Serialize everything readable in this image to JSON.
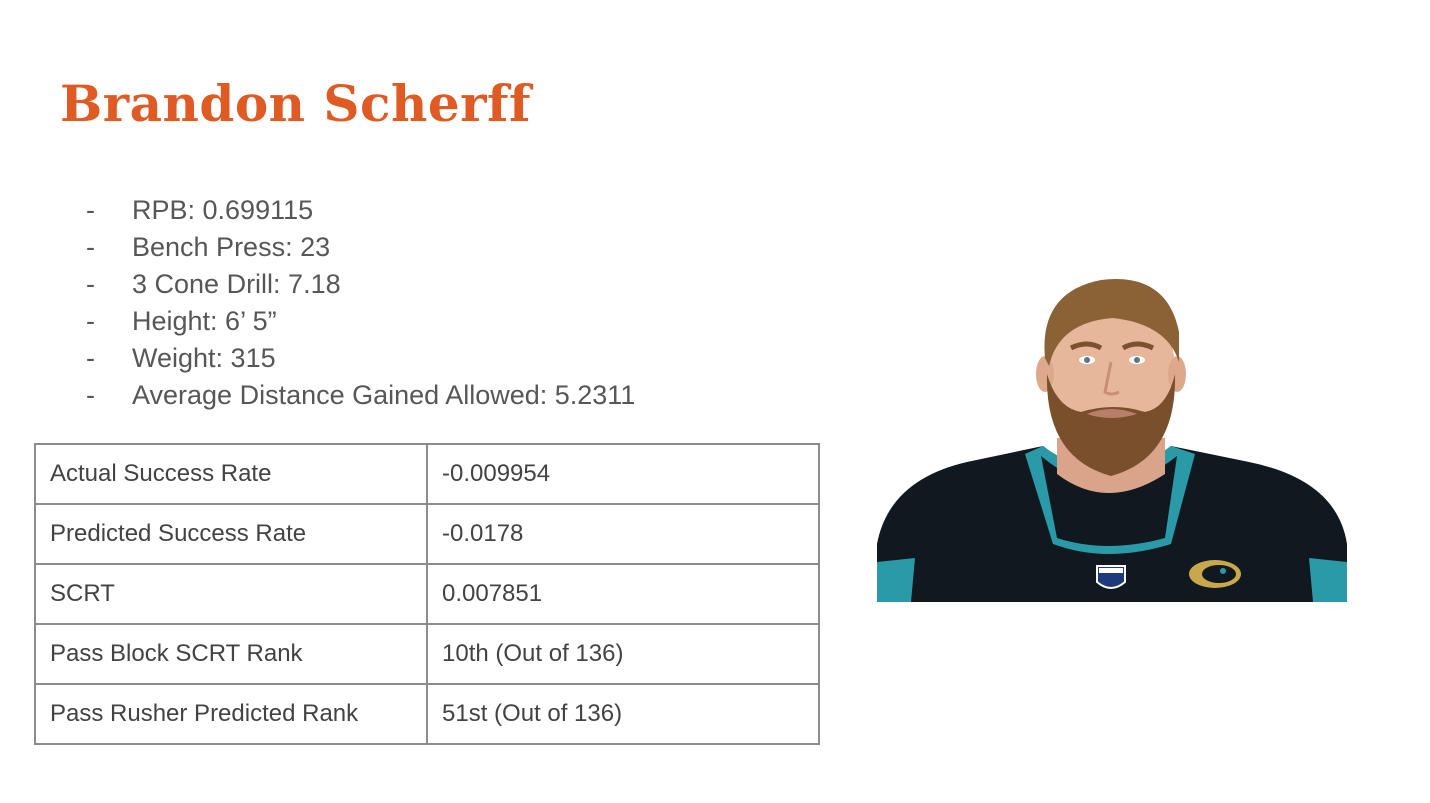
{
  "slide": {
    "title": "Brandon Scherff",
    "bullets": [
      {
        "dash": "-",
        "text": "RPB: 0.699115"
      },
      {
        "dash": "-",
        "text": "Bench Press: 23"
      },
      {
        "dash": "-",
        "text": "3 Cone Drill: 7.18"
      },
      {
        "dash": "-",
        "text": "Height: 6’ 5”"
      },
      {
        "dash": "-",
        "text": "Weight: 315"
      },
      {
        "dash": "-",
        "text": "Average Distance Gained Allowed: 5.2311"
      }
    ],
    "table": [
      {
        "label": "Actual Success Rate",
        "value": "-0.009954"
      },
      {
        "label": "Predicted Success Rate",
        "value": "-0.0178"
      },
      {
        "label": "SCRT",
        "value": "0.007851"
      },
      {
        "label": "Pass Block SCRT Rank",
        "value": "10th (Out of 136)"
      },
      {
        "label": "Pass Rusher Predicted Rank",
        "value": "51st (Out of 136)"
      }
    ]
  },
  "colors": {
    "title": "#e05a24",
    "jersey": "#101820",
    "jersey_trim": "#2a9aa8",
    "hair": "#8a6236",
    "beard": "#7a4f2c",
    "skin": "#e7b79c"
  },
  "icons": {
    "photo": "player-headshot-icon",
    "shield": "nfl-shield-icon",
    "team": "jaguar-logo-icon"
  }
}
